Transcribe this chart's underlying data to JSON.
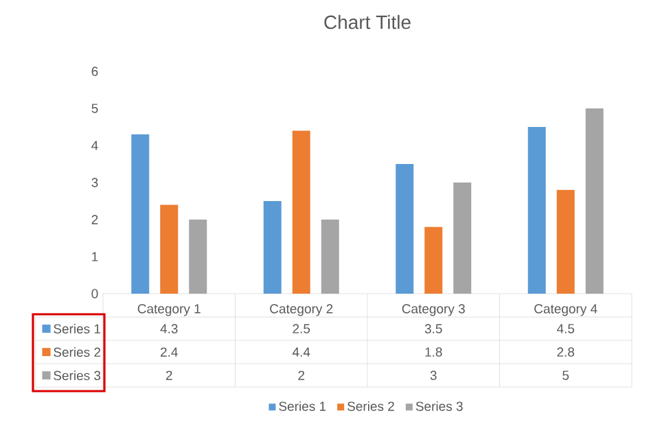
{
  "chart_data": {
    "type": "bar",
    "title": "Chart Title",
    "categories": [
      "Category 1",
      "Category 2",
      "Category 3",
      "Category 4"
    ],
    "series": [
      {
        "name": "Series 1",
        "color": "#5b9bd5",
        "values": [
          4.3,
          2.5,
          3.5,
          4.5
        ]
      },
      {
        "name": "Series 2",
        "color": "#ed7d31",
        "values": [
          2.4,
          4.4,
          1.8,
          2.8
        ]
      },
      {
        "name": "Series 3",
        "color": "#a5a5a5",
        "values": [
          2,
          2,
          3,
          5
        ]
      }
    ],
    "ylim": [
      0,
      6
    ],
    "yticks": [
      0,
      1,
      2,
      3,
      4,
      5,
      6
    ],
    "grid": false,
    "legend": "bottom",
    "data_labels": true
  }
}
